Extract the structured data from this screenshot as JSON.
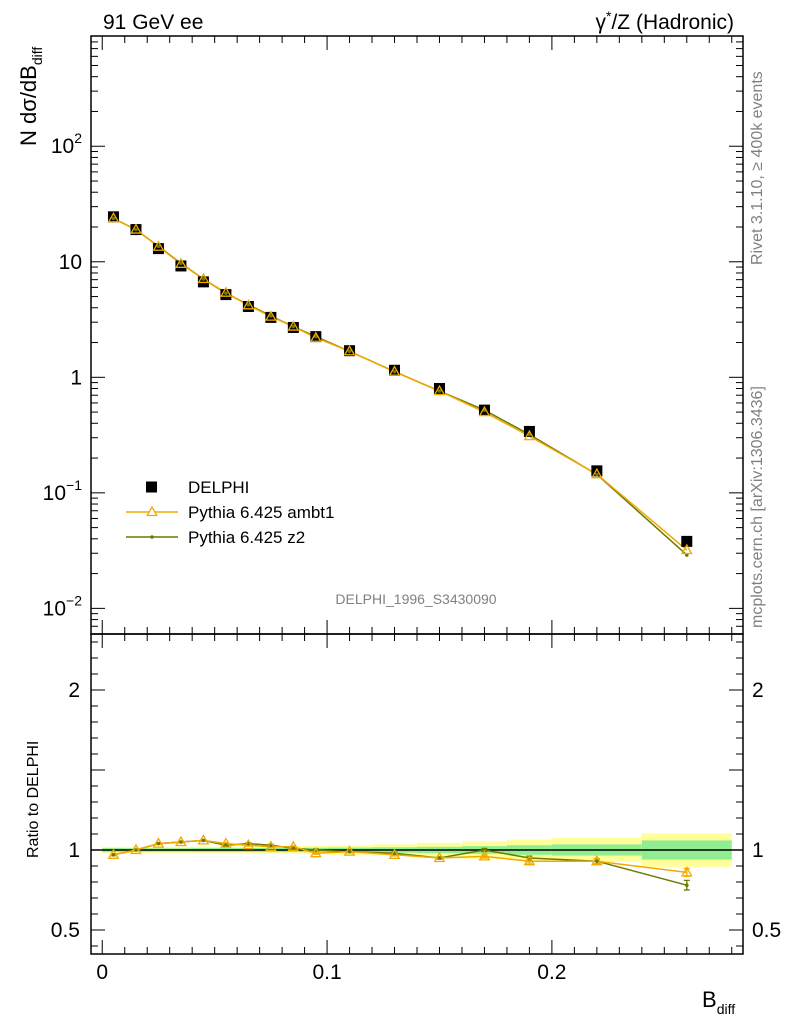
{
  "header": {
    "left": "91 GeV ee",
    "right_gamma": "γ",
    "right_star": "*",
    "right_rest": "/Z (Hadronic)"
  },
  "side": {
    "rivet": "Rivet 3.1.10, ≥ 400k events",
    "mcplots": "mcplots.cern.ch [arXiv:1306.3436]"
  },
  "watermark": "DELPHI_1996_S3430090",
  "colors": {
    "data": "#000000",
    "ambt1": "#f2a900",
    "z2": "#6b7a00",
    "band_inner": "#90ee90",
    "band_outer": "#ffff99"
  },
  "chart_data": [
    {
      "type": "scatter",
      "panel": "main",
      "ylabel_main": "N dσ/dB",
      "ylabel_sub": "diff",
      "yscale": "log",
      "ylim": [
        0.006,
        900
      ],
      "xlim": [
        -0.005,
        0.285
      ],
      "y_ticks": [
        {
          "v": 100,
          "base": "10",
          "exp": "2"
        },
        {
          "v": 10,
          "base": "10",
          "exp": ""
        },
        {
          "v": 1,
          "base": "1",
          "exp": ""
        },
        {
          "v": 0.1,
          "base": "10",
          "exp": "−1"
        },
        {
          "v": 0.01,
          "base": "10",
          "exp": "−2"
        }
      ],
      "legend": {
        "position": "lower-left",
        "entries": [
          {
            "label": "DELPHI",
            "marker": "square"
          },
          {
            "label": "Pythia 6.425 ambt1",
            "marker": "triangle"
          },
          {
            "label": "Pythia 6.425 z2",
            "marker": "dot"
          }
        ]
      },
      "series": [
        {
          "name": "DELPHI",
          "x": [
            0.005,
            0.015,
            0.025,
            0.035,
            0.045,
            0.055,
            0.065,
            0.075,
            0.085,
            0.095,
            0.11,
            0.13,
            0.15,
            0.17,
            0.19,
            0.22,
            0.26
          ],
          "y": [
            24.5,
            19.0,
            13.0,
            9.2,
            6.7,
            5.2,
            4.1,
            3.3,
            2.7,
            2.25,
            1.7,
            1.15,
            0.8,
            0.52,
            0.34,
            0.155,
            0.038
          ]
        },
        {
          "name": "Pythia 6.425 ambt1",
          "x": [
            0.005,
            0.015,
            0.025,
            0.035,
            0.045,
            0.055,
            0.065,
            0.075,
            0.085,
            0.095,
            0.11,
            0.13,
            0.15,
            0.17,
            0.19,
            0.22,
            0.26
          ],
          "y": [
            23.8,
            19.0,
            13.5,
            9.6,
            7.1,
            5.4,
            4.2,
            3.35,
            2.75,
            2.2,
            1.68,
            1.12,
            0.76,
            0.5,
            0.31,
            0.145,
            0.032
          ]
        },
        {
          "name": "Pythia 6.425 z2",
          "x": [
            0.005,
            0.015,
            0.025,
            0.035,
            0.045,
            0.055,
            0.065,
            0.075,
            0.085,
            0.095,
            0.11,
            0.13,
            0.15,
            0.17,
            0.19,
            0.22,
            0.26
          ],
          "y": [
            23.7,
            19.0,
            13.6,
            9.7,
            7.1,
            5.35,
            4.25,
            3.4,
            2.75,
            2.25,
            1.68,
            1.12,
            0.76,
            0.52,
            0.32,
            0.144,
            0.029
          ]
        }
      ]
    },
    {
      "type": "line",
      "panel": "ratio",
      "ylabel": "Ratio to DELPHI",
      "xlabel_main": "B",
      "xlabel_sub": "diff",
      "ylim": [
        0.35,
        2.35
      ],
      "xlim": [
        -0.005,
        0.285
      ],
      "y_ticks": [
        2,
        1,
        0.5
      ],
      "y_tick_labels": [
        "2",
        "1",
        "0.5"
      ],
      "x_ticks": [
        0,
        0.1,
        0.2
      ],
      "x_tick_labels": [
        "0",
        "0.1",
        "0.2"
      ],
      "bands": {
        "edges": [
          0.0,
          0.01,
          0.02,
          0.03,
          0.04,
          0.05,
          0.06,
          0.07,
          0.08,
          0.09,
          0.1,
          0.12,
          0.14,
          0.16,
          0.18,
          0.2,
          0.24,
          0.28
        ],
        "inner": [
          0.012,
          0.011,
          0.011,
          0.011,
          0.012,
          0.012,
          0.012,
          0.013,
          0.013,
          0.014,
          0.015,
          0.017,
          0.02,
          0.024,
          0.03,
          0.035,
          0.06
        ],
        "outer": [
          0.02,
          0.02,
          0.02,
          0.02,
          0.021,
          0.021,
          0.022,
          0.023,
          0.024,
          0.026,
          0.03,
          0.035,
          0.045,
          0.055,
          0.065,
          0.075,
          0.105
        ]
      },
      "series": [
        {
          "name": "Pythia 6.425 ambt1",
          "x": [
            0.005,
            0.015,
            0.025,
            0.035,
            0.045,
            0.055,
            0.065,
            0.075,
            0.085,
            0.095,
            0.11,
            0.13,
            0.15,
            0.17,
            0.19,
            0.22,
            0.26
          ],
          "y": [
            0.97,
            1.0,
            1.04,
            1.05,
            1.06,
            1.04,
            1.03,
            1.02,
            1.02,
            0.98,
            0.99,
            0.97,
            0.95,
            0.96,
            0.93,
            0.93,
            0.86
          ],
          "err": [
            0.005,
            0.005,
            0.005,
            0.005,
            0.005,
            0.005,
            0.005,
            0.005,
            0.006,
            0.006,
            0.006,
            0.007,
            0.008,
            0.01,
            0.012,
            0.015,
            0.025
          ]
        },
        {
          "name": "Pythia 6.425 z2",
          "x": [
            0.005,
            0.015,
            0.025,
            0.035,
            0.045,
            0.055,
            0.065,
            0.075,
            0.085,
            0.095,
            0.11,
            0.13,
            0.15,
            0.17,
            0.19,
            0.22,
            0.26
          ],
          "y": [
            0.97,
            1.0,
            1.04,
            1.05,
            1.06,
            1.03,
            1.04,
            1.03,
            1.01,
            1.0,
            0.99,
            0.98,
            0.95,
            1.0,
            0.95,
            0.93,
            0.78
          ],
          "err": [
            0.005,
            0.005,
            0.005,
            0.005,
            0.005,
            0.005,
            0.005,
            0.005,
            0.006,
            0.006,
            0.006,
            0.007,
            0.008,
            0.01,
            0.012,
            0.015,
            0.03
          ]
        }
      ]
    }
  ]
}
